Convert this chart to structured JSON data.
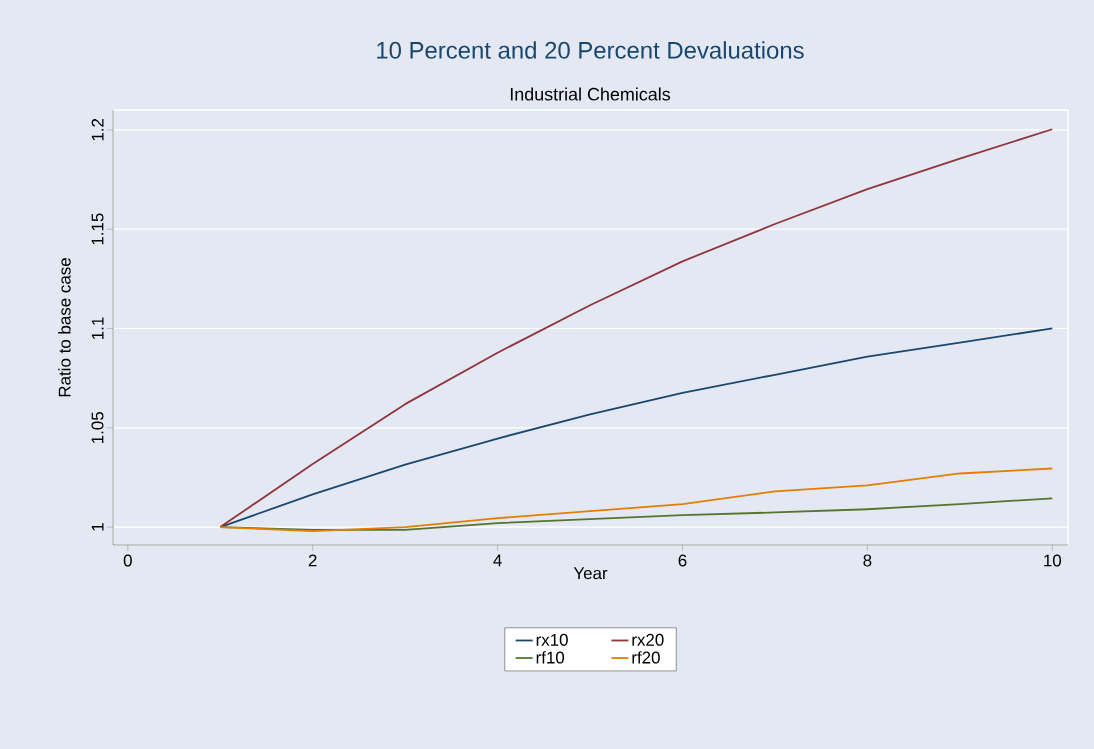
{
  "chart_data": {
    "type": "line",
    "title": "10 Percent and 20 Percent Devaluations",
    "subtitle": "Industrial Chemicals",
    "xlabel": "Year",
    "ylabel": "Ratio to base case",
    "x": [
      1,
      2,
      3,
      4,
      5,
      6,
      7,
      8,
      9,
      10
    ],
    "series": [
      {
        "name": "rx10",
        "color": "#1a476f",
        "values": [
          1.0,
          1.0165,
          1.0315,
          1.0446,
          1.0568,
          1.0676,
          1.0767,
          1.0858,
          1.0929,
          1.1
        ]
      },
      {
        "name": "rx20",
        "color": "#90353b",
        "values": [
          1.0,
          1.0318,
          1.0619,
          1.0878,
          1.1117,
          1.1338,
          1.1526,
          1.1702,
          1.1855,
          1.2003
        ]
      },
      {
        "name": "rf10",
        "color": "#55752f",
        "values": [
          1.0,
          0.9986,
          0.9986,
          1.002,
          1.004,
          1.006,
          1.0074,
          1.009,
          1.0116,
          1.0145
        ]
      },
      {
        "name": "rf20",
        "color": "#e37e00",
        "values": [
          1.0,
          0.998,
          1.0,
          1.0045,
          1.008,
          1.0116,
          1.018,
          1.021,
          1.027,
          1.0295
        ]
      }
    ],
    "xlim": [
      -0.16,
      10.17
    ],
    "ylim": [
      0.991,
      1.21
    ],
    "xticks": [
      0,
      2,
      4,
      6,
      8,
      10
    ],
    "yticks": [
      1,
      1.05,
      1.1,
      1.15,
      1.2
    ],
    "grid": "y",
    "legend": "bottom",
    "line_style": "solid"
  }
}
